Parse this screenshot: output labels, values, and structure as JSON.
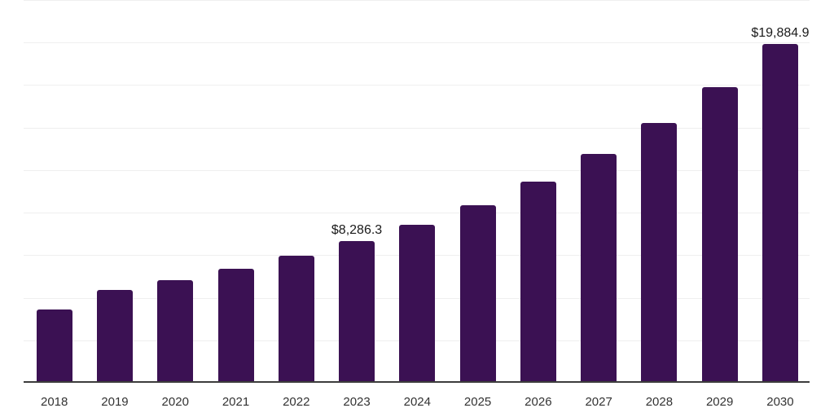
{
  "chart_data": {
    "type": "bar",
    "title": "",
    "xlabel": "",
    "ylabel": "",
    "categories": [
      "2018",
      "2019",
      "2020",
      "2021",
      "2022",
      "2023",
      "2024",
      "2025",
      "2026",
      "2027",
      "2028",
      "2029",
      "2030"
    ],
    "values": [
      4285,
      5405,
      5980,
      6670,
      7420,
      8286.3,
      9225,
      10395,
      11770,
      13385,
      15220,
      17320,
      19884.9
    ],
    "data_labels": {
      "2023": "$8,286.3",
      "2030": "$19,884.9"
    },
    "ylim": [
      0,
      22500
    ],
    "gridline_step": 2500,
    "grid": "horizontal",
    "legend": "none",
    "y_tick_labels_visible": false,
    "colors": {
      "bar": "#3b1153",
      "gridline": "#efefef",
      "axis_line": "#3c3c3c",
      "value_label": "#1a1a1a",
      "tick_label": "#333333",
      "background": "#ffffff"
    }
  }
}
